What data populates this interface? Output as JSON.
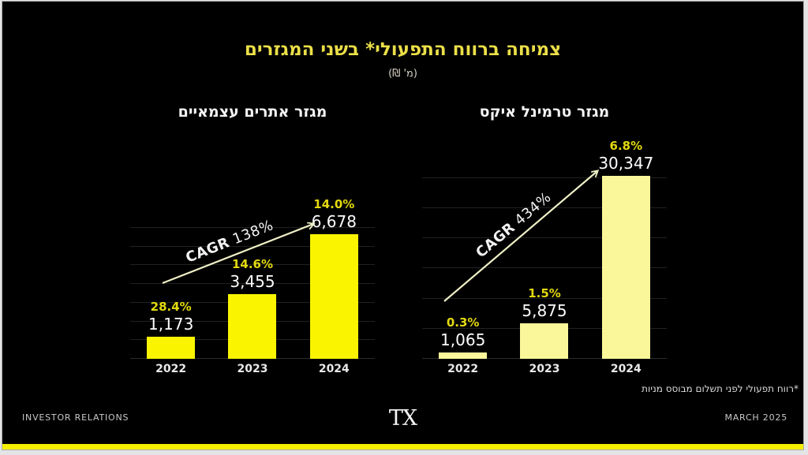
{
  "slide": {
    "title": "צמיחה ברווח התפעולי* בשני המגזרים",
    "subtitle": "(מ' ₪)",
    "footnote": "*רווח תפעולי לפני תשלום מבוסס מניות",
    "footer": {
      "left": "INVESTOR RELATIONS",
      "logo": "TX",
      "right": "MARCH 2025"
    }
  },
  "colors": {
    "background": "#000000",
    "frame": "#E4E4E4",
    "accent_strip": "#F6EF00",
    "title_yellow": "#EBDF48",
    "pct_yellow": "#E3D90E",
    "bar_left": "#FAF400",
    "bar_right": "#FAF79B",
    "arrow": "#EFEFC6",
    "gridline": "#212121",
    "value_text": "#FDFDFD"
  },
  "chart_data": [
    {
      "type": "bar",
      "title": "מגזר אתרים עצמאיים",
      "categories": [
        "2022",
        "2023",
        "2024"
      ],
      "values": [
        1173,
        3455,
        6678
      ],
      "value_labels": [
        "1,173",
        "3,455",
        "6,678"
      ],
      "growth_labels": [
        "28.4%",
        "14.6%",
        "14.0%"
      ],
      "cagr_prefix": "CAGR",
      "cagr_value": "138%",
      "bar_color_key": "bar_left",
      "ylim": [
        0,
        7000
      ],
      "grid_step": 1000,
      "grid": true,
      "legend": "none"
    },
    {
      "type": "bar",
      "title": "מגזר טרמינל איקס",
      "categories": [
        "2022",
        "2023",
        "2024"
      ],
      "values": [
        1065,
        5875,
        30347
      ],
      "value_labels": [
        "1,065",
        "5,875",
        "30,347"
      ],
      "growth_labels": [
        "0.3%",
        "1.5%",
        "6.8%"
      ],
      "cagr_prefix": "CAGR",
      "cagr_value": "434%",
      "bar_color_key": "bar_right",
      "ylim": [
        0,
        30500
      ],
      "grid_step": 5000,
      "grid": true,
      "legend": "none"
    }
  ]
}
